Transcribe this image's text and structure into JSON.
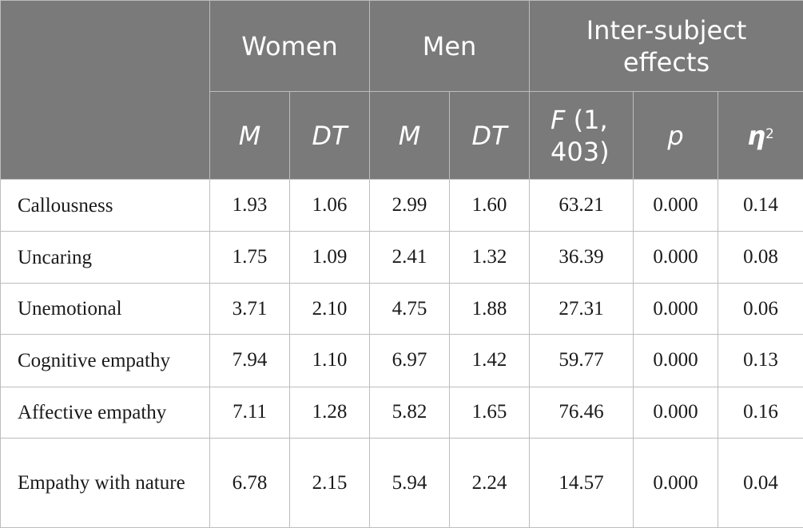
{
  "header": {
    "groups": [
      "Women",
      "Men",
      "Inter-subject effects"
    ],
    "sub": {
      "m": "M",
      "dt": "DT",
      "f": "F (1, 403)",
      "p": "p",
      "eta": "η",
      "eta_sup": "2"
    }
  },
  "rows": [
    {
      "label": "Callousness",
      "w_m": "1.93",
      "w_dt": "1.06",
      "m_m": "2.99",
      "m_dt": "1.60",
      "f": "63.21",
      "p": "0.000",
      "eta2": "0.14"
    },
    {
      "label": "Uncaring",
      "w_m": "1.75",
      "w_dt": "1.09",
      "m_m": "2.41",
      "m_dt": "1.32",
      "f": "36.39",
      "p": "0.000",
      "eta2": "0.08"
    },
    {
      "label": "Unemotional",
      "w_m": "3.71",
      "w_dt": "2.10",
      "m_m": "4.75",
      "m_dt": "1.88",
      "f": "27.31",
      "p": "0.000",
      "eta2": "0.06"
    },
    {
      "label": "Cognitive empathy",
      "w_m": "7.94",
      "w_dt": "1.10",
      "m_m": "6.97",
      "m_dt": "1.42",
      "f": "59.77",
      "p": "0.000",
      "eta2": "0.13"
    },
    {
      "label": "Affective empathy",
      "w_m": "7.11",
      "w_dt": "1.28",
      "m_m": "5.82",
      "m_dt": "1.65",
      "f": "76.46",
      "p": "0.000",
      "eta2": "0.16"
    },
    {
      "label": "Empathy with nature",
      "w_m": "6.78",
      "w_dt": "2.15",
      "m_m": "5.94",
      "m_dt": "2.24",
      "f": "14.57",
      "p": "0.000",
      "eta2": "0.04"
    }
  ]
}
